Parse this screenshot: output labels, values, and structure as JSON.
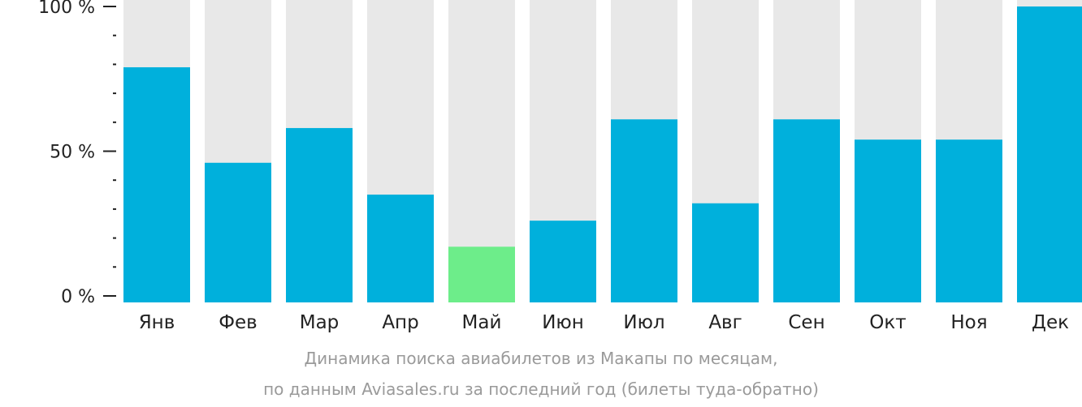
{
  "chart_data": {
    "type": "bar",
    "categories": [
      "Янв",
      "Фев",
      "Мар",
      "Апр",
      "Май",
      "Июн",
      "Июл",
      "Авг",
      "Сен",
      "Окт",
      "Ноя",
      "Дек"
    ],
    "values": [
      79,
      46,
      58,
      35,
      17,
      26,
      61,
      32,
      61,
      54,
      54,
      100
    ],
    "ylim": [
      0,
      100
    ],
    "yticks": [
      {
        "value": 0,
        "label": "0 %"
      },
      {
        "value": 50,
        "label": "50 %"
      },
      {
        "value": 100,
        "label": "100 %"
      }
    ],
    "minor_tick_step": 10,
    "highlight_index": 4,
    "colors": {
      "bar": "#00b0dc",
      "highlight": "#6ded8a",
      "background_bar": "#e8e8e8",
      "axis": "#222222"
    },
    "caption_line1": "Динамика поиска авиабилетов из Макапы по месяцам,",
    "caption_line2": "по данным Aviasales.ru за последний год (билеты туда-обратно)"
  }
}
